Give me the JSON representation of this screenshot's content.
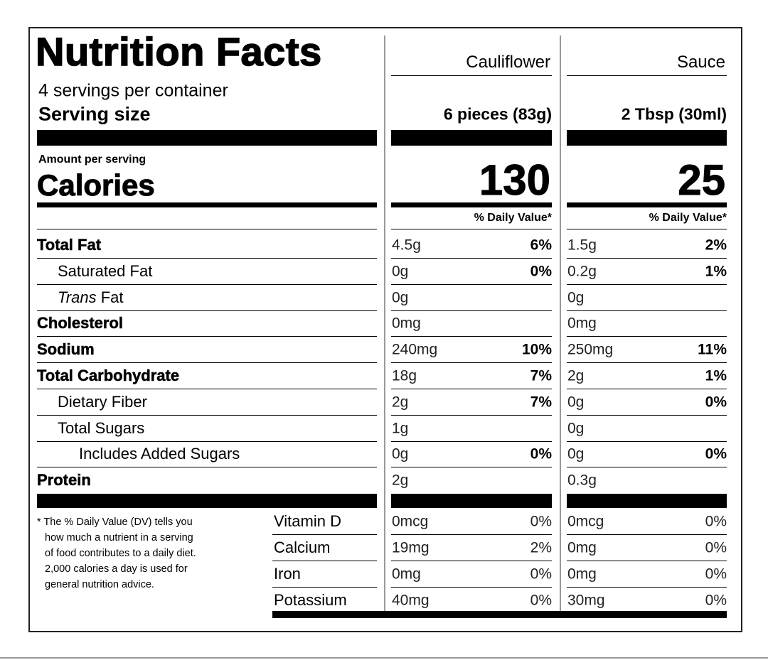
{
  "title": "Nutrition Facts",
  "servings": "4 servings per container",
  "serving_size_label": "Serving size",
  "amount_label": "Amount per serving",
  "calories_label": "Calories",
  "footnote": [
    "* The % Daily Value (DV) tells you",
    "how much a nutrient in a serving",
    "of food contributes to a daily diet.",
    "2,000 calories a day is used for",
    "general nutrition advice."
  ],
  "nutrients": [
    {
      "label": "Total Fat",
      "style": "bold",
      "indent": 0
    },
    {
      "label": "Saturated Fat",
      "style": "normal",
      "indent": 1
    },
    {
      "italic_prefix": "Trans",
      "label": "Fat",
      "style": "normal",
      "indent": 1
    },
    {
      "label": "Cholesterol",
      "style": "bold",
      "indent": 0
    },
    {
      "label": "Sodium",
      "style": "bold",
      "indent": 0
    },
    {
      "label": "Total Carbohydrate",
      "style": "bold",
      "indent": 0
    },
    {
      "label": "Dietary Fiber",
      "style": "normal",
      "indent": 1
    },
    {
      "label": "Total Sugars",
      "style": "normal",
      "indent": 1
    },
    {
      "label": "Includes Added Sugars",
      "style": "normal",
      "indent": 2
    },
    {
      "label": "Protein",
      "style": "bold",
      "indent": 0
    }
  ],
  "vitamins": [
    "Vitamin D",
    "Calcium",
    "Iron",
    "Potassium"
  ],
  "columns": [
    {
      "name": "Cauliflower",
      "serving_size": "6 pieces (83g)",
      "calories": 130,
      "dv_header": "% Daily Value*",
      "nutrients": [
        {
          "amount": "4.5g",
          "dv": "6%"
        },
        {
          "amount": "0g",
          "dv": "0%"
        },
        {
          "amount": "0g"
        },
        {
          "amount": "0mg"
        },
        {
          "amount": "240mg",
          "dv": "10%"
        },
        {
          "amount": "18g",
          "dv": "7%"
        },
        {
          "amount": "2g",
          "dv": "7%"
        },
        {
          "amount": "1g"
        },
        {
          "amount": "0g",
          "dv": "0%"
        },
        {
          "amount": "2g"
        }
      ],
      "vitamins": [
        {
          "amount": "0mcg",
          "dv": "0%"
        },
        {
          "amount": "19mg",
          "dv": "2%"
        },
        {
          "amount": "0mg",
          "dv": "0%"
        },
        {
          "amount": "40mg",
          "dv": "0%"
        }
      ]
    },
    {
      "name": "Sauce",
      "serving_size": "2 Tbsp (30ml)",
      "calories": 25,
      "dv_header": "% Daily Value*",
      "nutrients": [
        {
          "amount": "1.5g",
          "dv": "2%"
        },
        {
          "amount": "0.2g",
          "dv": "1%"
        },
        {
          "amount": "0g"
        },
        {
          "amount": "0mg"
        },
        {
          "amount": "250mg",
          "dv": "11%"
        },
        {
          "amount": "2g",
          "dv": "1%"
        },
        {
          "amount": "0g",
          "dv": "0%"
        },
        {
          "amount": "0g"
        },
        {
          "amount": "0g",
          "dv": "0%"
        },
        {
          "amount": "0.3g"
        }
      ],
      "vitamins": [
        {
          "amount": "0mcg",
          "dv": "0%"
        },
        {
          "amount": "0mg",
          "dv": "0%"
        },
        {
          "amount": "0mg",
          "dv": "0%"
        },
        {
          "amount": "30mg",
          "dv": "0%"
        }
      ]
    }
  ]
}
